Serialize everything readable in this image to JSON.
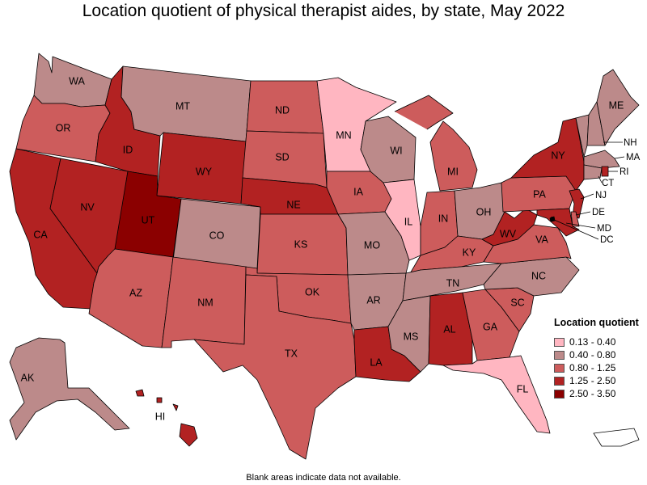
{
  "title": "Location quotient of physical therapist aides, by state, May 2022",
  "footnote": "Blank areas indicate data not available.",
  "legend": {
    "title": "Location quotient",
    "items": [
      {
        "label": "0.13 - 0.40",
        "color": "#ffb6c1"
      },
      {
        "label": "0.40 - 0.80",
        "color": "#bc8a8a"
      },
      {
        "label": "0.80 - 1.25",
        "color": "#cd5c5c"
      },
      {
        "label": "1.25 - 2.50",
        "color": "#b22222"
      },
      {
        "label": "2.50 - 3.50",
        "color": "#8b0000"
      }
    ]
  },
  "states": {
    "WA": "0.40 - 0.80",
    "OR": "0.80 - 1.25",
    "CA": "1.25 - 2.50",
    "NV": "1.25 - 2.50",
    "ID": "1.25 - 2.50",
    "MT": "0.40 - 0.80",
    "WY": "1.25 - 2.50",
    "UT": "2.50 - 3.50",
    "AZ": "0.80 - 1.25",
    "CO": "0.40 - 0.80",
    "NM": "0.80 - 1.25",
    "ND": "0.80 - 1.25",
    "SD": "0.80 - 1.25",
    "NE": "1.25 - 2.50",
    "KS": "0.80 - 1.25",
    "OK": "0.80 - 1.25",
    "TX": "0.80 - 1.25",
    "MN": "0.13 - 0.40",
    "IA": "0.80 - 1.25",
    "MO": "0.40 - 0.80",
    "AR": "0.40 - 0.80",
    "LA": "1.25 - 2.50",
    "WI": "0.40 - 0.80",
    "IL": "0.13 - 0.40",
    "MI": "0.80 - 1.25",
    "IN": "0.80 - 1.25",
    "OH": "0.40 - 0.80",
    "KY": "0.80 - 1.25",
    "TN": "0.40 - 0.80",
    "MS": "0.40 - 0.80",
    "AL": "1.25 - 2.50",
    "GA": "0.80 - 1.25",
    "FL": "0.13 - 0.40",
    "SC": "0.80 - 1.25",
    "NC": "0.40 - 0.80",
    "VA": "0.80 - 1.25",
    "WV": "1.25 - 2.50",
    "PA": "0.80 - 1.25",
    "NY": "1.25 - 2.50",
    "ME": "0.40 - 0.80",
    "NH": "0.40 - 0.80",
    "VT": "0.40 - 0.80",
    "MA": "0.40 - 0.80",
    "RI": "1.25 - 2.50",
    "CT": "0.40 - 0.80",
    "NJ": "1.25 - 2.50",
    "DE": "0.80 - 1.25",
    "MD": "1.25 - 2.50",
    "DC": "0.40 - 0.80",
    "AK": "0.40 - 0.80",
    "HI": "1.25 - 2.50"
  }
}
